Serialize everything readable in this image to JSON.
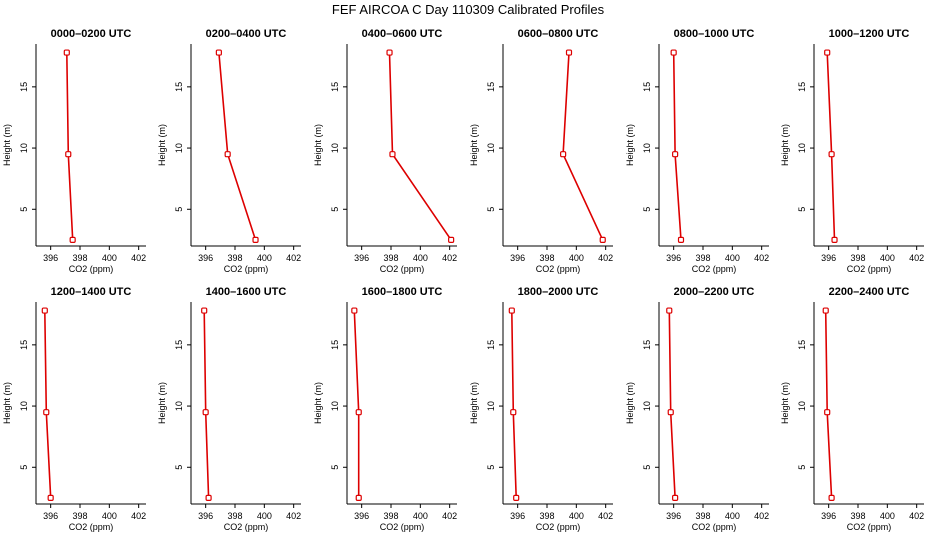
{
  "title": "FEF AIRCOA C  Day 110309  Calibrated Profiles",
  "colors": {
    "line": "#dd0000",
    "axis": "#000000",
    "background": "#ffffff"
  },
  "chart_data": {
    "type": "line",
    "xlabel": "CO2 (ppm)",
    "ylabel": "Height (m)",
    "xlim": [
      395,
      402.5
    ],
    "ylim": [
      2,
      18.5
    ],
    "xticks": [
      "396",
      "398",
      "400",
      "402"
    ],
    "yticks": [
      "5",
      "10",
      "15"
    ],
    "grid": false,
    "panels": [
      {
        "title": "0000–0200 UTC",
        "points": [
          {
            "x": 397.5,
            "y": 2.5
          },
          {
            "x": 397.2,
            "y": 9.5
          },
          {
            "x": 397.1,
            "y": 17.8
          }
        ]
      },
      {
        "title": "0200–0400 UTC",
        "points": [
          {
            "x": 399.4,
            "y": 2.5
          },
          {
            "x": 397.5,
            "y": 9.5
          },
          {
            "x": 396.9,
            "y": 17.8
          }
        ]
      },
      {
        "title": "0400–0600 UTC",
        "points": [
          {
            "x": 402.1,
            "y": 2.5
          },
          {
            "x": 398.1,
            "y": 9.5
          },
          {
            "x": 397.9,
            "y": 17.8
          }
        ]
      },
      {
        "title": "0600–0800 UTC",
        "points": [
          {
            "x": 401.8,
            "y": 2.5
          },
          {
            "x": 399.1,
            "y": 9.5
          },
          {
            "x": 399.5,
            "y": 17.8
          }
        ]
      },
      {
        "title": "0800–1000 UTC",
        "points": [
          {
            "x": 396.5,
            "y": 2.5
          },
          {
            "x": 396.1,
            "y": 9.5
          },
          {
            "x": 396.0,
            "y": 17.8
          }
        ]
      },
      {
        "title": "1000–1200 UTC",
        "points": [
          {
            "x": 396.4,
            "y": 2.5
          },
          {
            "x": 396.2,
            "y": 9.5
          },
          {
            "x": 395.9,
            "y": 17.8
          }
        ]
      },
      {
        "title": "1200–1400 UTC",
        "points": [
          {
            "x": 396.0,
            "y": 2.5
          },
          {
            "x": 395.7,
            "y": 9.5
          },
          {
            "x": 395.6,
            "y": 17.8
          }
        ]
      },
      {
        "title": "1400–1600 UTC",
        "points": [
          {
            "x": 396.2,
            "y": 2.5
          },
          {
            "x": 396.0,
            "y": 9.5
          },
          {
            "x": 395.9,
            "y": 17.8
          }
        ]
      },
      {
        "title": "1600–1800 UTC",
        "points": [
          {
            "x": 395.8,
            "y": 2.5
          },
          {
            "x": 395.8,
            "y": 9.5
          },
          {
            "x": 395.5,
            "y": 17.8
          }
        ]
      },
      {
        "title": "1800–2000 UTC",
        "points": [
          {
            "x": 395.9,
            "y": 2.5
          },
          {
            "x": 395.7,
            "y": 9.5
          },
          {
            "x": 395.6,
            "y": 17.8
          }
        ]
      },
      {
        "title": "2000–2200 UTC",
        "points": [
          {
            "x": 396.1,
            "y": 2.5
          },
          {
            "x": 395.8,
            "y": 9.5
          },
          {
            "x": 395.7,
            "y": 17.8
          }
        ]
      },
      {
        "title": "2200–2400 UTC",
        "points": [
          {
            "x": 396.2,
            "y": 2.5
          },
          {
            "x": 395.9,
            "y": 9.5
          },
          {
            "x": 395.8,
            "y": 17.8
          }
        ]
      }
    ]
  }
}
